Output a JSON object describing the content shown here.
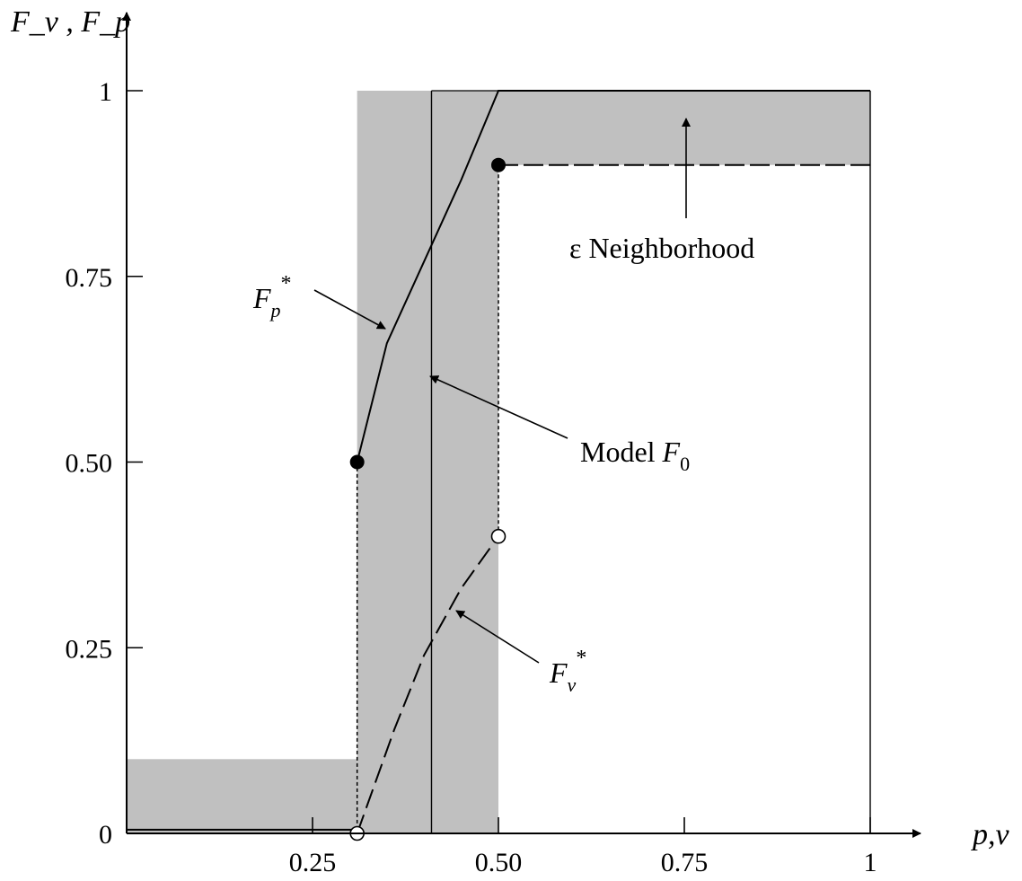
{
  "chart_data": {
    "type": "line",
    "xlabel": "p,v",
    "ylabel": "F_v , F_p",
    "xlim": [
      0,
      1.05
    ],
    "ylim": [
      0,
      1.05
    ],
    "x_ticks": [
      0.25,
      0.5,
      0.75,
      1
    ],
    "x_tick_labels": [
      "0.25",
      "0.50",
      "0.75",
      "1"
    ],
    "y_ticks": [
      0,
      0.25,
      0.5,
      0.75,
      1
    ],
    "y_tick_labels": [
      "0",
      "0.25",
      "0.50",
      "0.75",
      "1"
    ],
    "grid": false,
    "epsilon_neighborhood": [
      {
        "x0": 0,
        "x1": 0.31,
        "y0": 0,
        "y1": 0.1
      },
      {
        "x0": 0.31,
        "x1": 0.5,
        "y0": 0,
        "y1": 1
      },
      {
        "x0": 0.5,
        "x1": 1,
        "y0": 0.9,
        "y1": 1
      }
    ],
    "model_F0": {
      "x": 0.41,
      "baseline": {
        "x0": 0,
        "x1": 0.41,
        "y": 0
      },
      "top": {
        "x0": 0.41,
        "x1": 1,
        "y": 1
      }
    },
    "series": [
      {
        "name": "Fp*",
        "style": "solid",
        "x": [
          0,
          0.31,
          0.31,
          0.35,
          0.4,
          0.45,
          0.5,
          1
        ],
        "y": [
          0.005,
          0.005,
          0.5,
          0.66,
          0.77,
          0.88,
          1,
          1
        ],
        "filled_point": {
          "x": 0.31,
          "y": 0.5
        }
      },
      {
        "name": "Fv*",
        "style": "dashed",
        "x": [
          0,
          0.31,
          0.36,
          0.4,
          0.45,
          0.5,
          0.5,
          1
        ],
        "y": [
          0.0,
          0.0,
          0.14,
          0.24,
          0.33,
          0.4,
          0.9,
          0.9
        ],
        "open_point": {
          "x": 0.5,
          "y": 0.4
        },
        "filled_point": {
          "x": 0.5,
          "y": 0.9
        }
      }
    ],
    "annotations": [
      {
        "text": "ε Neighborhood"
      },
      {
        "text_main": "Model ",
        "text_var": "F",
        "text_sub": "0"
      },
      {
        "text_var": "F",
        "text_sub": "p",
        "text_sup": "*"
      },
      {
        "text_var": "F",
        "text_sub": "v",
        "text_sup": "*"
      }
    ]
  }
}
